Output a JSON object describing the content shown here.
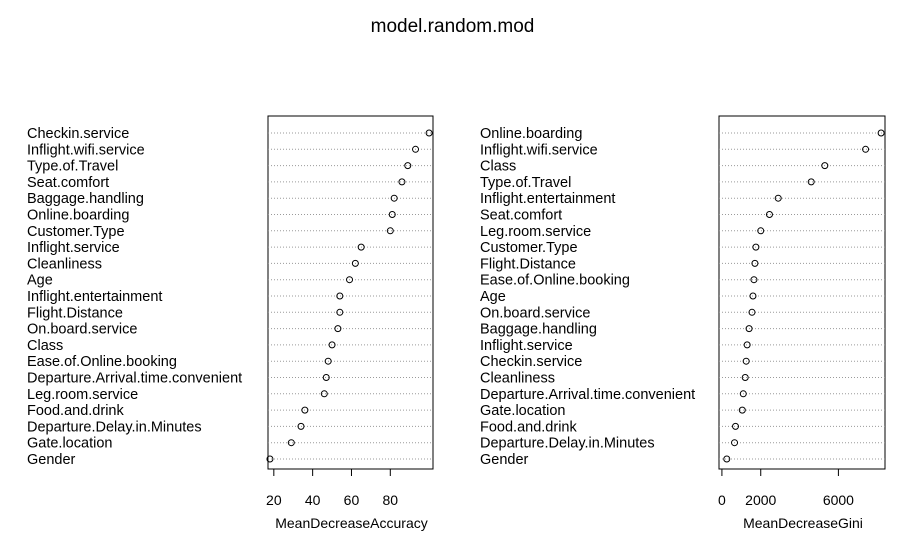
{
  "title": "model.random.mod",
  "chart_data": [
    {
      "type": "scatter",
      "xlabel": "MeanDecreaseAccuracy",
      "ylabel": "",
      "xlim": [
        17,
        102
      ],
      "xticks": [
        20,
        40,
        60,
        80
      ],
      "grid": true,
      "categories": [
        "Checkin.service",
        "Inflight.wifi.service",
        "Type.of.Travel",
        "Seat.comfort",
        "Baggage.handling",
        "Online.boarding",
        "Customer.Type",
        "Inflight.service",
        "Cleanliness",
        "Age",
        "Inflight.entertainment",
        "Flight.Distance",
        "On.board.service",
        "Class",
        "Ease.of.Online.booking",
        "Departure.Arrival.time.convenient",
        "Leg.room.service",
        "Food.and.drink",
        "Departure.Delay.in.Minutes",
        "Gate.location",
        "Gender"
      ],
      "values": [
        100,
        93,
        89,
        86,
        82,
        81,
        80,
        65,
        62,
        59,
        54,
        54,
        53,
        50,
        48,
        47,
        46,
        36,
        34,
        29,
        18
      ]
    },
    {
      "type": "scatter",
      "xlabel": "MeanDecreaseGini",
      "ylabel": "",
      "xlim": [
        -150,
        8400
      ],
      "xticks": [
        0,
        2000,
        6000
      ],
      "grid": true,
      "categories": [
        "Online.boarding",
        "Inflight.wifi.service",
        "Class",
        "Type.of.Travel",
        "Inflight.entertainment",
        "Seat.comfort",
        "Leg.room.service",
        "Customer.Type",
        "Flight.Distance",
        "Ease.of.Online.booking",
        "Age",
        "On.board.service",
        "Baggage.handling",
        "Inflight.service",
        "Checkin.service",
        "Cleanliness",
        "Departure.Arrival.time.convenient",
        "Gate.location",
        "Food.and.drink",
        "Departure.Delay.in.Minutes",
        "Gender"
      ],
      "values": [
        8200,
        7400,
        5300,
        4600,
        2900,
        2450,
        2000,
        1750,
        1700,
        1650,
        1600,
        1550,
        1400,
        1300,
        1250,
        1200,
        1100,
        1050,
        700,
        650,
        250
      ]
    }
  ]
}
